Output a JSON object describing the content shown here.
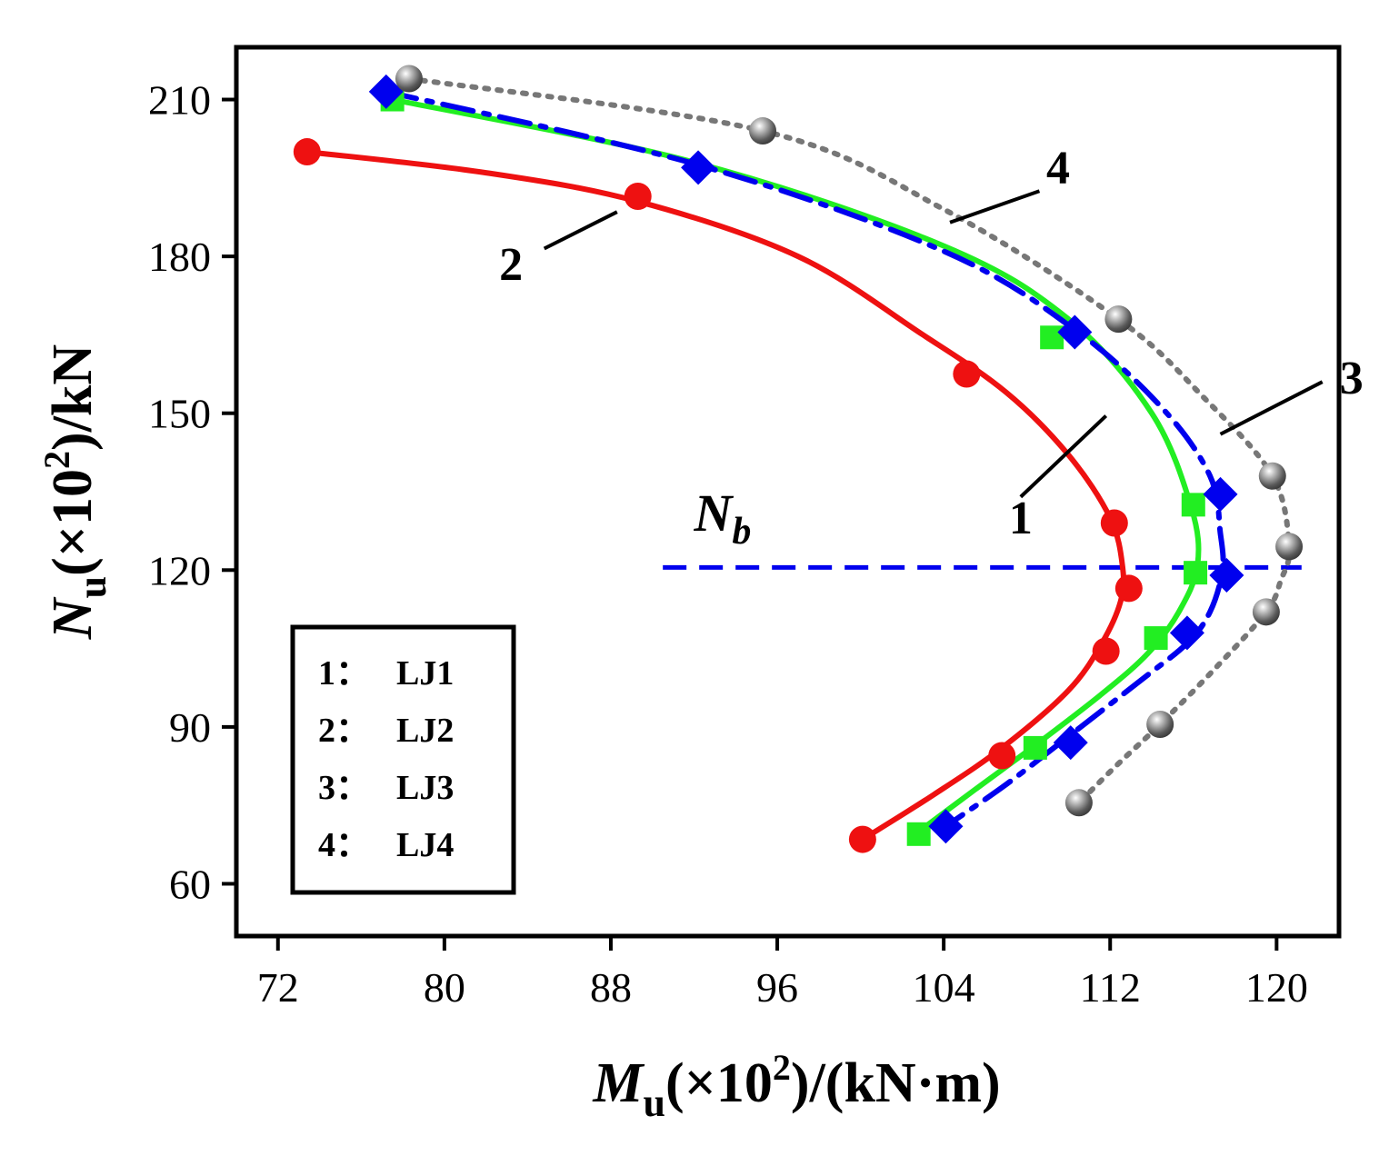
{
  "chart_data": {
    "type": "line",
    "xlabel": {
      "main": "M",
      "sub": "u",
      "rest": "(×10",
      "sup": "2",
      "tail": ")/(kN·m)"
    },
    "ylabel": {
      "main": "N",
      "sub": "u",
      "rest": "(×10",
      "sup": "2",
      "tail": ")/kN"
    },
    "xlim": [
      70,
      123
    ],
    "ylim": [
      50,
      220
    ],
    "xticks": [
      72,
      80,
      88,
      96,
      104,
      112,
      120
    ],
    "yticks": [
      60,
      90,
      120,
      150,
      180,
      210
    ],
    "xtick_labels": [
      "72",
      "80",
      "88",
      "96",
      "104",
      "112",
      "120"
    ],
    "ytick_labels": [
      "60",
      "90",
      "120",
      "150",
      "180",
      "210"
    ],
    "reference_line": {
      "label_main": "N",
      "label_sub": "b",
      "y": 120.5,
      "x_start": 90.5,
      "x_end": 121.2,
      "color": "#0000ee"
    },
    "series": [
      {
        "id": "1",
        "name": "LJ1",
        "color": "#22ee22",
        "marker": "square",
        "line": "solid",
        "points": [
          [
            77.5,
            210
          ],
          [
            109.2,
            164.5
          ],
          [
            116,
            132.5
          ],
          [
            116.1,
            119.5
          ],
          [
            114.2,
            107
          ],
          [
            108.4,
            86
          ],
          [
            102.8,
            69.5
          ]
        ],
        "curve": [
          [
            77.5,
            210
          ],
          [
            92,
            198
          ],
          [
            104,
            182
          ],
          [
            110,
            168
          ],
          [
            114,
            150
          ],
          [
            115.9,
            132
          ],
          [
            116.2,
            121
          ],
          [
            115.3,
            112
          ],
          [
            113.8,
            104
          ],
          [
            111.5,
            96
          ],
          [
            108.4,
            86.5
          ],
          [
            105.5,
            78
          ],
          [
            102.8,
            70
          ]
        ]
      },
      {
        "id": "2",
        "name": "LJ2",
        "color": "#ee1111",
        "marker": "circle",
        "line": "solid",
        "points": [
          [
            73.4,
            200
          ],
          [
            89.3,
            191.5
          ],
          [
            105.1,
            157.5
          ],
          [
            112.2,
            129
          ],
          [
            112.9,
            116.5
          ],
          [
            111.8,
            104.5
          ],
          [
            106.8,
            84.5
          ],
          [
            100.1,
            68.5
          ]
        ],
        "curve": [
          [
            73.4,
            200
          ],
          [
            82,
            196
          ],
          [
            89.3,
            190.5
          ],
          [
            97,
            180
          ],
          [
            103,
            165
          ],
          [
            107,
            154
          ],
          [
            110,
            142
          ],
          [
            112,
            130
          ],
          [
            112.6,
            120.5
          ],
          [
            112.5,
            114
          ],
          [
            111.6,
            106
          ],
          [
            110,
            97
          ],
          [
            106.8,
            86
          ],
          [
            103.5,
            77
          ],
          [
            100.1,
            68.5
          ]
        ]
      },
      {
        "id": "3",
        "name": "LJ3",
        "color": "#0000ee",
        "marker": "diamond",
        "line": "dashdot",
        "points": [
          [
            77.2,
            211.5
          ],
          [
            92.2,
            197
          ],
          [
            110.3,
            165.5
          ],
          [
            117.3,
            134.5
          ],
          [
            117.6,
            119
          ],
          [
            115.7,
            108
          ],
          [
            110.1,
            87
          ],
          [
            104.1,
            71
          ]
        ],
        "curve": [
          [
            77.2,
            211.5
          ],
          [
            92.2,
            197.5
          ],
          [
            104,
            181
          ],
          [
            110.3,
            166
          ],
          [
            114.5,
            151
          ],
          [
            116.8,
            138
          ],
          [
            117.3,
            127
          ],
          [
            117.4,
            120
          ],
          [
            116.8,
            112
          ],
          [
            115.7,
            106
          ],
          [
            113.5,
            99
          ],
          [
            110.1,
            88.5
          ],
          [
            107,
            79
          ],
          [
            104.1,
            71
          ]
        ]
      },
      {
        "id": "4",
        "name": "LJ4",
        "color": "#777777",
        "marker": "sphere",
        "line": "dotted",
        "points": [
          [
            78.3,
            214
          ],
          [
            95.3,
            204
          ],
          [
            112.4,
            168
          ],
          [
            119.8,
            138
          ],
          [
            120.6,
            124.5
          ],
          [
            119.5,
            112
          ],
          [
            114.4,
            90.5
          ],
          [
            110.5,
            75.5
          ]
        ],
        "curve": [
          [
            78.3,
            214
          ],
          [
            95.3,
            204
          ],
          [
            104,
            189
          ],
          [
            112.4,
            168
          ],
          [
            116.5,
            153
          ],
          [
            119.8,
            138
          ],
          [
            120.6,
            124.5
          ],
          [
            120.2,
            118
          ],
          [
            119.5,
            112
          ],
          [
            117,
            101
          ],
          [
            114.4,
            90.5
          ],
          [
            112.4,
            83
          ],
          [
            110.5,
            75.5
          ]
        ]
      }
    ],
    "annotations": [
      {
        "text": "1",
        "line_from": [
          111.8,
          149.5
        ],
        "line_to": [
          107.7,
          134
        ],
        "text_at": [
          107.7,
          127
        ]
      },
      {
        "text": "2",
        "line_from": [
          88.3,
          188.5
        ],
        "line_to": [
          84.8,
          181.5
        ],
        "text_at": [
          83.2,
          175.5
        ]
      },
      {
        "text": "3",
        "line_from": [
          122.2,
          156
        ],
        "line_to": [
          117.3,
          146
        ],
        "text_at": [
          123.6,
          153.8
        ]
      },
      {
        "text": "4",
        "line_from": [
          108.6,
          192.5
        ],
        "line_to": [
          104.3,
          186.5
        ],
        "text_at": [
          109.5,
          194
        ]
      }
    ],
    "legend": {
      "position": "bottom-left",
      "entries": [
        {
          "key": "1：",
          "label": "LJ1"
        },
        {
          "key": "2：",
          "label": "LJ2"
        },
        {
          "key": "3：",
          "label": "LJ3"
        },
        {
          "key": "4：",
          "label": "LJ4"
        }
      ]
    }
  }
}
